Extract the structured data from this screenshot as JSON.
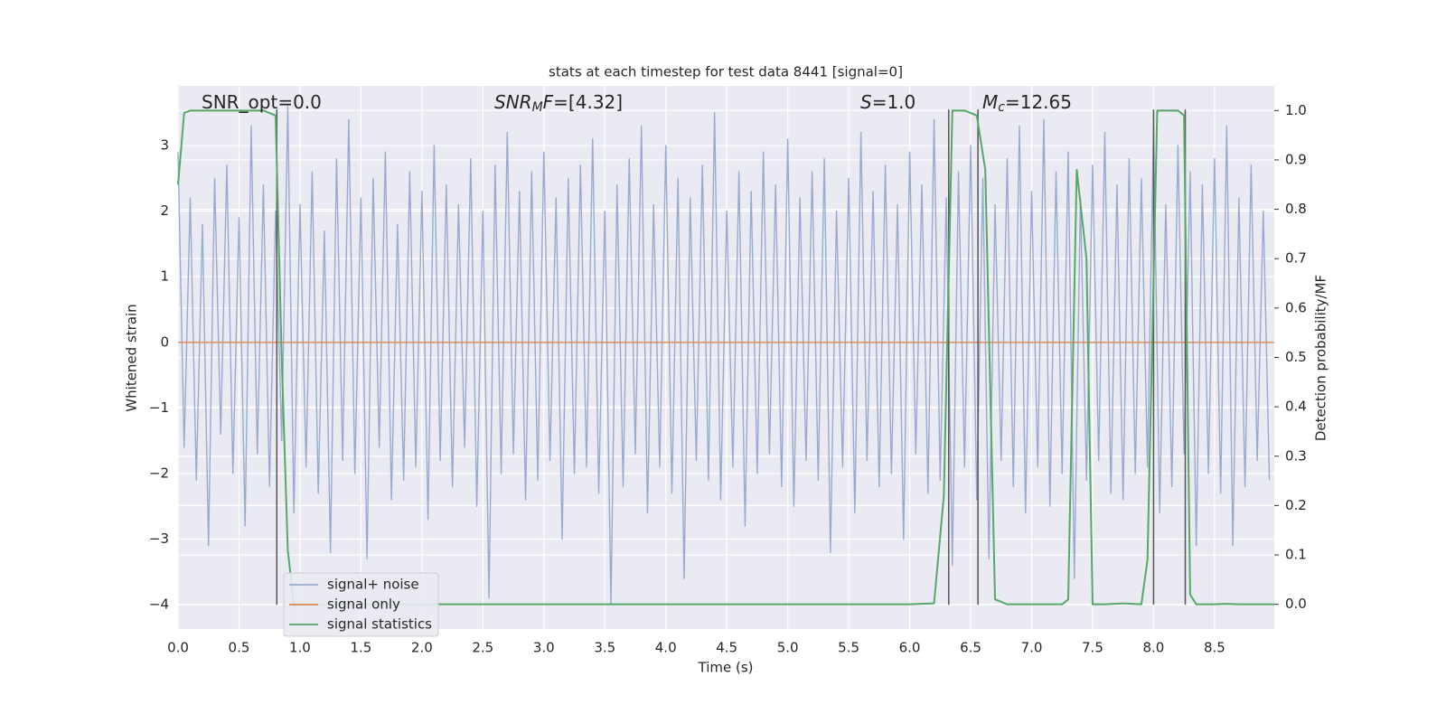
{
  "chart_data": {
    "type": "line",
    "title": "stats at each timestep for test data 8441 [signal=0]",
    "xlabel": "Time (s)",
    "ylabel": "Whitened strain",
    "y2label": "Detection probability/MF",
    "annotations": [
      [
        "SNR_opt=0.0"
      ],
      [
        "SNR",
        "M",
        "F",
        "=[4.32]"
      ],
      [
        "S",
        "=1.0"
      ],
      [
        "M",
        "c",
        "=12.65"
      ]
    ],
    "xlim": [
      0,
      8.99
    ],
    "ylim": [
      -4.37,
      3.91
    ],
    "y2lim": [
      -0.05,
      1.05
    ],
    "xticks": [
      {
        "value": 0,
        "label": "0.0"
      },
      0.5,
      {
        "value": 1,
        "label": "1.0"
      },
      1.5,
      {
        "value": 2,
        "label": "2.0"
      },
      2.5,
      {
        "value": 3,
        "label": "3.0"
      },
      3.5,
      {
        "value": 4,
        "label": "4.0"
      },
      4.5,
      {
        "value": 5,
        "label": "5.0"
      },
      5.5,
      {
        "value": 6,
        "label": "6.0"
      },
      6.5,
      {
        "value": 7,
        "label": "7.0"
      },
      7.5,
      {
        "value": 8,
        "label": "8.0"
      },
      8.5
    ],
    "yticks": [
      {
        "value": -4,
        "label": "−4"
      },
      {
        "value": -3,
        "label": "−3"
      },
      {
        "value": -2,
        "label": "−2"
      },
      {
        "value": -1,
        "label": "−1"
      },
      0,
      1,
      2,
      3
    ],
    "y2ticks": [
      {
        "value": 0,
        "label": "0.0"
      },
      0.1,
      0.2,
      0.3,
      0.4,
      0.5,
      0.6,
      0.7,
      0.8,
      0.9,
      {
        "value": 1,
        "label": "1.0"
      }
    ],
    "grid": true,
    "legend": "lower left",
    "vlines": {
      "x": [
        0.81,
        6.32,
        6.56,
        8.0,
        8.26
      ],
      "ymin": -4,
      "ymax": 3.55,
      "color": "#555555"
    },
    "series": [
      {
        "name": "signal+ noise",
        "color": "#9aaace",
        "x": [
          0,
          0.05,
          0.1,
          0.15,
          0.2,
          0.25,
          0.3,
          0.35,
          0.4,
          0.45,
          0.5,
          0.55,
          0.6,
          0.65,
          0.7,
          0.75,
          0.8,
          0.85,
          0.9,
          0.95,
          1,
          1.05,
          1.1,
          1.15,
          1.2,
          1.25,
          1.3,
          1.35,
          1.4,
          1.45,
          1.5,
          1.55,
          1.6,
          1.65,
          1.7,
          1.75,
          1.8,
          1.85,
          1.9,
          1.95,
          2,
          2.05,
          2.1,
          2.15,
          2.2,
          2.25,
          2.3,
          2.35,
          2.4,
          2.45,
          2.5,
          2.55,
          2.6,
          2.65,
          2.7,
          2.75,
          2.8,
          2.85,
          2.9,
          2.95,
          3,
          3.05,
          3.1,
          3.15,
          3.2,
          3.25,
          3.3,
          3.35,
          3.4,
          3.45,
          3.5,
          3.55,
          3.6,
          3.65,
          3.7,
          3.75,
          3.8,
          3.85,
          3.9,
          3.95,
          4,
          4.05,
          4.1,
          4.15,
          4.2,
          4.25,
          4.3,
          4.35,
          4.4,
          4.45,
          4.5,
          4.55,
          4.6,
          4.65,
          4.7,
          4.75,
          4.8,
          4.85,
          4.9,
          4.95,
          5,
          5.05,
          5.1,
          5.15,
          5.2,
          5.25,
          5.3,
          5.35,
          5.4,
          5.45,
          5.5,
          5.55,
          5.6,
          5.65,
          5.7,
          5.75,
          5.8,
          5.85,
          5.9,
          5.95,
          6,
          6.05,
          6.1,
          6.15,
          6.2,
          6.25,
          6.3,
          6.35,
          6.4,
          6.45,
          6.5,
          6.55,
          6.6,
          6.65,
          6.7,
          6.75,
          6.8,
          6.85,
          6.9,
          6.95,
          7,
          7.05,
          7.1,
          7.15,
          7.2,
          7.25,
          7.3,
          7.35,
          7.4,
          7.45,
          7.5,
          7.55,
          7.6,
          7.65,
          7.7,
          7.75,
          7.8,
          7.85,
          7.9,
          7.95,
          8,
          8.05,
          8.1,
          8.15,
          8.2,
          8.25,
          8.3,
          8.35,
          8.4,
          8.45,
          8.5,
          8.55,
          8.6,
          8.65,
          8.7,
          8.75,
          8.8,
          8.85,
          8.9,
          8.95
        ],
        "values": [
          2.9,
          -1.6,
          2.2,
          -2.1,
          1.8,
          -3.1,
          2.5,
          -1.4,
          2.7,
          -2.0,
          1.9,
          -2.8,
          3.3,
          -1.7,
          2.4,
          -2.2,
          2.0,
          -1.5,
          3.6,
          -2.6,
          2.1,
          -1.9,
          2.6,
          -2.3,
          1.7,
          -3.2,
          2.8,
          -1.8,
          3.4,
          -2.0,
          2.2,
          -3.3,
          2.5,
          -1.6,
          2.9,
          -2.4,
          1.8,
          -2.1,
          2.6,
          -1.9,
          2.3,
          -2.7,
          3.0,
          -1.8,
          2.4,
          -2.2,
          2.1,
          -1.6,
          2.8,
          -2.5,
          2.0,
          -3.9,
          2.7,
          -2.0,
          3.2,
          -1.7,
          2.3,
          -2.4,
          2.6,
          -2.1,
          2.9,
          -1.8,
          2.2,
          -3.0,
          2.5,
          -2.0,
          2.7,
          -1.9,
          3.1,
          -2.3,
          2.0,
          -4.0,
          2.4,
          -2.2,
          2.8,
          -1.7,
          3.3,
          -2.6,
          2.1,
          -1.9,
          3.0,
          -2.3,
          2.5,
          -3.6,
          2.2,
          -1.8,
          2.7,
          -2.1,
          3.5,
          -2.4,
          2.0,
          -1.9,
          2.6,
          -2.8,
          2.3,
          -2.0,
          2.9,
          -1.7,
          2.4,
          -2.2,
          3.1,
          -2.5,
          2.2,
          -1.8,
          2.6,
          -2.1,
          2.8,
          -3.2,
          2.0,
          -1.9,
          2.5,
          -2.6,
          3.2,
          -1.8,
          2.3,
          -2.2,
          2.7,
          -2.0,
          2.1,
          -3.0,
          2.9,
          -1.7,
          2.4,
          -2.3,
          3.4,
          -2.1,
          2.2,
          -3.4,
          2.6,
          -1.9,
          3.0,
          -2.4,
          2.5,
          -3.3,
          2.1,
          -1.8,
          2.8,
          -2.2,
          3.3,
          -2.6,
          2.3,
          -1.9,
          3.4,
          -2.5,
          2.6,
          -2.0,
          2.9,
          -3.6,
          2.2,
          -2.1,
          2.7,
          -1.8,
          3.2,
          -2.3,
          2.4,
          -2.4,
          2.8,
          -2.0,
          2.5,
          -1.9,
          3.3,
          -2.6,
          2.1,
          -2.2,
          3.0,
          -1.7,
          2.6,
          -3.1,
          2.4,
          -2.0,
          2.8,
          -2.3,
          3.3,
          -3.1,
          2.2,
          -2.2,
          2.7,
          -1.8,
          2.0,
          -2.1
        ]
      },
      {
        "name": "signal only",
        "color": "#dd8452",
        "x": [
          0,
          8.99
        ],
        "values": [
          0,
          0
        ]
      },
      {
        "name": "signal statistics",
        "color": "#55a868",
        "axis": "y2",
        "x": [
          0,
          0.05,
          0.1,
          0.2,
          0.3,
          0.4,
          0.5,
          0.6,
          0.7,
          0.8,
          0.85,
          0.9,
          0.95,
          1.0,
          2.0,
          3.0,
          4.0,
          5.0,
          6.0,
          6.2,
          6.28,
          6.35,
          6.4,
          6.45,
          6.55,
          6.62,
          6.7,
          6.8,
          7.0,
          7.25,
          7.3,
          7.37,
          7.45,
          7.5,
          7.6,
          7.75,
          7.9,
          7.95,
          8.03,
          8.1,
          8.2,
          8.25,
          8.3,
          8.35,
          8.5,
          8.6,
          8.7,
          8.99
        ],
        "values": [
          0.85,
          0.995,
          1.0,
          1.0,
          1.0,
          1.0,
          1.0,
          1.0,
          1.0,
          0.99,
          0.5,
          0.11,
          0.0,
          0.0,
          0.0,
          0.0,
          0.0,
          0.0,
          0.0,
          0.002,
          0.22,
          1.0,
          1.0,
          1.0,
          0.99,
          0.88,
          0.01,
          0.0,
          0.0,
          0.0,
          0.01,
          0.88,
          0.7,
          0.0,
          0.0,
          0.002,
          0.0,
          0.09,
          1.0,
          1.0,
          1.0,
          0.99,
          0.02,
          0.0,
          0.0,
          0.001,
          0.0,
          0.0
        ]
      }
    ]
  }
}
